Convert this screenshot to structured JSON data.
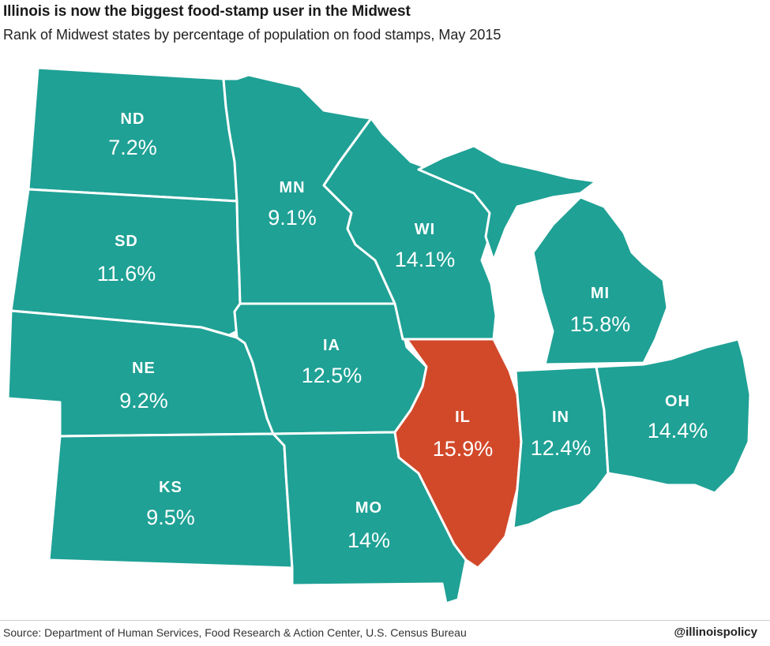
{
  "title": "Illinois is now the biggest food-stamp user in the Midwest",
  "subtitle": "Rank of Midwest states by percentage of population on food stamps, May 2015",
  "colors": {
    "default_state": "#1fa195",
    "highlight_state": "#d2492a",
    "label": "#ffffff"
  },
  "states": {
    "ND": {
      "abbr": "ND",
      "value": "7.2%"
    },
    "SD": {
      "abbr": "SD",
      "value": "11.6%"
    },
    "NE": {
      "abbr": "NE",
      "value": "9.2%"
    },
    "KS": {
      "abbr": "KS",
      "value": "9.5%"
    },
    "MN": {
      "abbr": "MN",
      "value": "9.1%"
    },
    "IA": {
      "abbr": "IA",
      "value": "12.5%"
    },
    "MO": {
      "abbr": "MO",
      "value": "14%"
    },
    "WI": {
      "abbr": "WI",
      "value": "14.1%"
    },
    "IL": {
      "abbr": "IL",
      "value": "15.9%"
    },
    "MI": {
      "abbr": "MI",
      "value": "15.8%"
    },
    "IN": {
      "abbr": "IN",
      "value": "12.4%"
    },
    "OH": {
      "abbr": "OH",
      "value": "14.4%"
    }
  },
  "source": "Source: Department of Human Services, Food Research & Action Center, U.S. Census Bureau",
  "handle": "@illinoispolicy"
}
